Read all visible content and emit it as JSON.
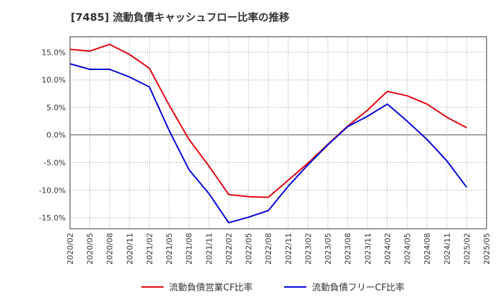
{
  "chart_data": {
    "type": "line",
    "title": "[7485]  流動負債キャッシュフロー比率の推移",
    "xlabel": "",
    "ylabel": "",
    "x": [
      "2020/02",
      "2020/05",
      "2020/08",
      "2020/11",
      "2021/02",
      "2021/05",
      "2021/08",
      "2021/11",
      "2022/02",
      "2022/05",
      "2022/08",
      "2022/11",
      "2023/02",
      "2023/05",
      "2023/08",
      "2023/11",
      "2024/02",
      "2024/05",
      "2024/08",
      "2024/11",
      "2025/02",
      "2025/05"
    ],
    "y_ticks": [
      15,
      10,
      5,
      0,
      -5,
      -10,
      -15
    ],
    "y_tick_labels": [
      "15.0%",
      "10.0%",
      "5.0%",
      "0.0%",
      "-5.0%",
      "-10.0%",
      "-15.0%"
    ],
    "ylim": [
      -17,
      17.8
    ],
    "grid": true,
    "legend_position": "bottom",
    "series": [
      {
        "name": "流動負債営業CF比率",
        "color": "#e8000b",
        "values": [
          15.5,
          15.2,
          16.4,
          14.6,
          12.1,
          5.4,
          -0.8,
          -5.6,
          -10.8,
          -11.2,
          -11.3,
          -8.2,
          -5.1,
          -1.7,
          1.6,
          4.5,
          7.9,
          7.1,
          5.6,
          3.2,
          1.3,
          null
        ]
      },
      {
        "name": "流動負債フリーCF比率",
        "color": "#0000dd",
        "values": [
          12.9,
          11.9,
          11.9,
          10.5,
          8.7,
          0.8,
          -6.3,
          -10.6,
          -15.9,
          -14.9,
          -13.7,
          -9.3,
          -5.4,
          -1.8,
          1.5,
          3.4,
          5.6,
          2.5,
          -0.8,
          -4.7,
          -9.5,
          null
        ]
      }
    ]
  }
}
